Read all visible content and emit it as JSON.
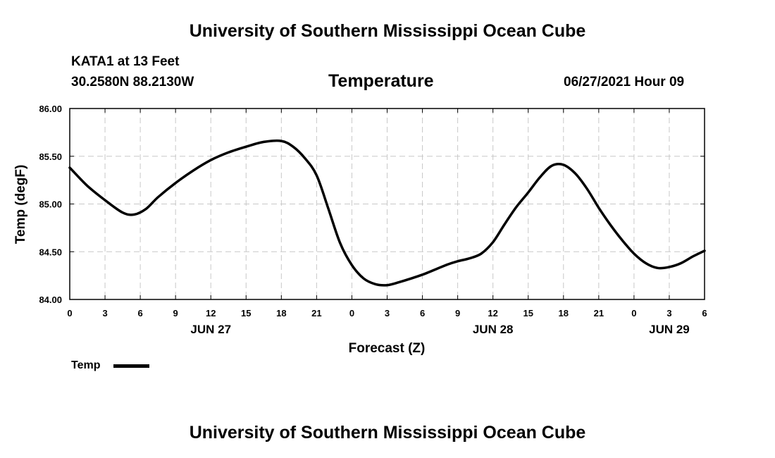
{
  "header": {
    "title_top": "University of Southern Mississippi Ocean Cube",
    "station": "KATA1 at 13 Feet",
    "coords": "30.2580N  88.2130W",
    "datetime": "06/27/2021 Hour 09",
    "title_bottom": "University of Southern Mississippi Ocean Cube"
  },
  "legend": {
    "label": "Temp"
  },
  "chart_data": {
    "type": "line",
    "title": "Temperature",
    "xlabel": "Forecast (Z)",
    "ylabel": "Temp (degF)",
    "xlim": [
      0,
      54
    ],
    "ylim": [
      84.0,
      86.0
    ],
    "grid": true,
    "x_tick_values": [
      0,
      3,
      6,
      9,
      12,
      15,
      18,
      21,
      24,
      27,
      30,
      33,
      36,
      39,
      42,
      45,
      48,
      51,
      54
    ],
    "x_tick_labels": [
      "0",
      "3",
      "6",
      "9",
      "12",
      "15",
      "18",
      "21",
      "0",
      "3",
      "6",
      "9",
      "12",
      "15",
      "18",
      "21",
      "0",
      "3",
      "6"
    ],
    "y_ticks": [
      84.0,
      84.5,
      85.0,
      85.5,
      86.0
    ],
    "y_tick_labels": [
      "84.00",
      "84.50",
      "85.00",
      "85.50",
      "86.00"
    ],
    "date_labels": [
      {
        "x": 12,
        "label": "JUN 27"
      },
      {
        "x": 36,
        "label": "JUN 28"
      },
      {
        "x": 51,
        "label": "JUN 29"
      }
    ],
    "series": [
      {
        "name": "Temp",
        "color": "#000000",
        "x": [
          0,
          1.5,
          3,
          4.5,
          5.5,
          6.5,
          7.5,
          9,
          10.5,
          12,
          13.5,
          15,
          16.5,
          18,
          19,
          20,
          21,
          22,
          23,
          24,
          25,
          26,
          27,
          28,
          30,
          32,
          33,
          34,
          35,
          36,
          37,
          38,
          39,
          40,
          41,
          42,
          43,
          44,
          45,
          46,
          47,
          48,
          49,
          50,
          51,
          52,
          53,
          54
        ],
        "y": [
          85.38,
          85.19,
          85.04,
          84.91,
          84.89,
          84.95,
          85.07,
          85.22,
          85.35,
          85.46,
          85.54,
          85.6,
          85.65,
          85.66,
          85.6,
          85.48,
          85.3,
          84.95,
          84.59,
          84.36,
          84.22,
          84.16,
          84.15,
          84.18,
          84.26,
          84.36,
          84.4,
          84.43,
          84.48,
          84.6,
          84.79,
          84.97,
          85.12,
          85.28,
          85.4,
          85.41,
          85.32,
          85.16,
          84.96,
          84.78,
          84.62,
          84.48,
          84.38,
          84.33,
          84.34,
          84.38,
          84.45,
          84.51
        ]
      }
    ]
  }
}
